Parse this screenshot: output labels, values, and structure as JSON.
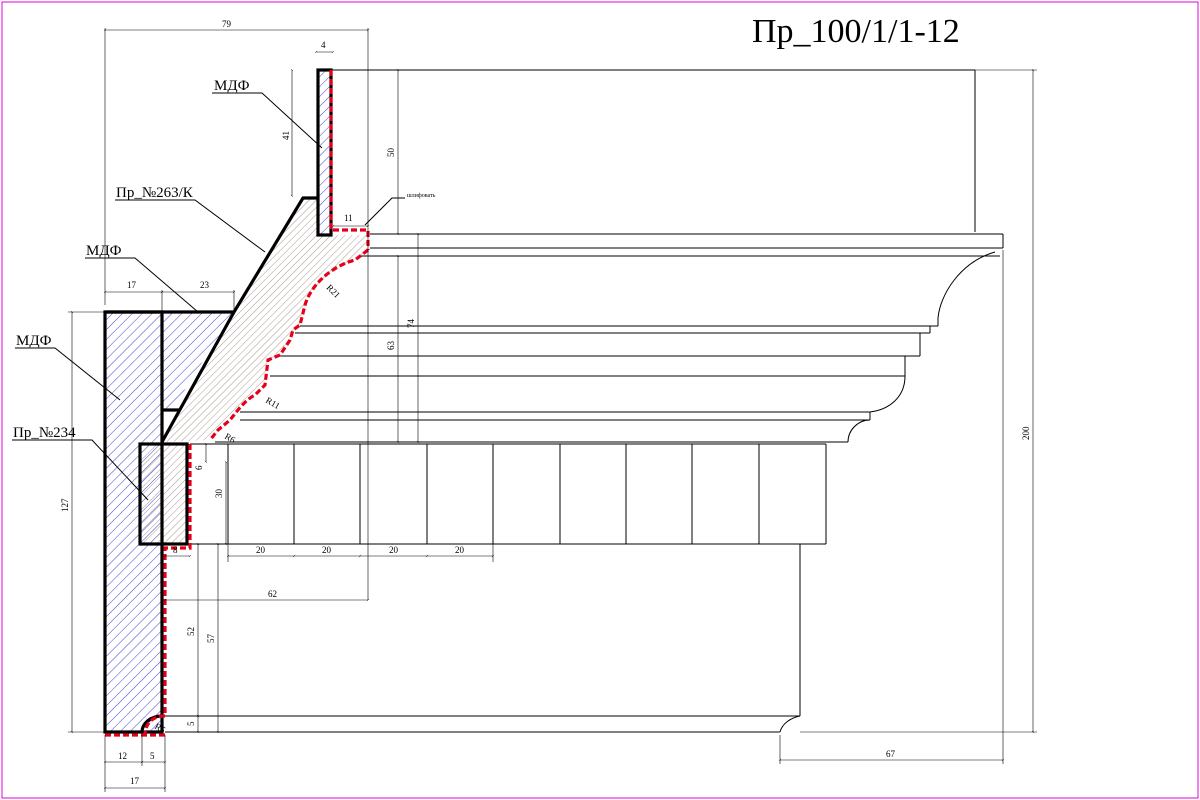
{
  "drawing": {
    "title": "Пр_100/1/1-12",
    "note_polishing": "шлифовать"
  },
  "labels": {
    "mdf_top": "МДФ",
    "profile_263": "Пр_№263/К",
    "mdf_mid": "МДФ",
    "mdf_left": "МДФ",
    "profile_234": "Пр_№234"
  },
  "dimensions": {
    "d79": "79",
    "d4": "4",
    "d41": "41",
    "d50": "50",
    "d11": "11",
    "d17_top": "17",
    "d23": "23",
    "r21": "R21",
    "d74": "74",
    "d63": "63",
    "r11": "R11",
    "r6": "R6",
    "d6": "6",
    "d30": "30",
    "d8": "8",
    "d20a": "20",
    "d20b": "20",
    "d20c": "20",
    "d20d": "20",
    "d62": "62",
    "d127": "127",
    "d52": "52",
    "d57": "57",
    "d5": "5",
    "r5": "R5",
    "d12": "12",
    "d5_bottom": "5",
    "d17_bottom": "17",
    "d200": "200",
    "d67": "67"
  },
  "colors": {
    "outline": "#000000",
    "finish_edge": "#e4001b",
    "mdf_hatch": "#2b2bd6",
    "profile_hatch": "#8a6a60",
    "sheet_border": "#e000e0"
  }
}
